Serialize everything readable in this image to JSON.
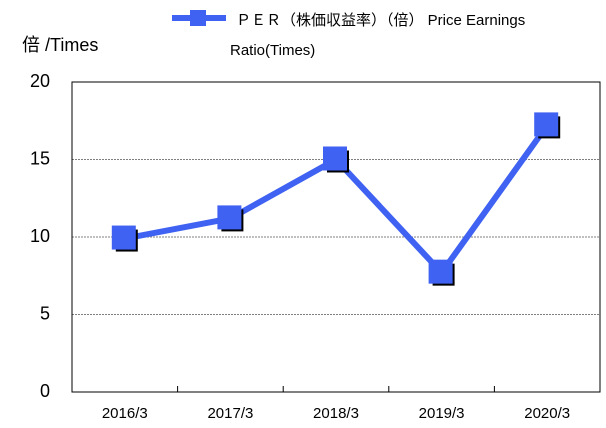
{
  "chart_data": {
    "type": "line",
    "y_label": "倍 /Times",
    "categories": [
      "2016/3",
      "2017/3",
      "2018/3",
      "2019/3",
      "2020/3"
    ],
    "series": [
      {
        "name": "ＰＥＲ（株価収益率）（倍） Price Earnings Ratio(Times)",
        "color": "#3f62f2",
        "values": [
          9.9,
          11.2,
          15.0,
          7.7,
          17.2
        ]
      }
    ],
    "ylim": [
      0,
      20
    ],
    "yticks": [
      0,
      5,
      10,
      15,
      20
    ],
    "grid": true,
    "legend": "top"
  }
}
